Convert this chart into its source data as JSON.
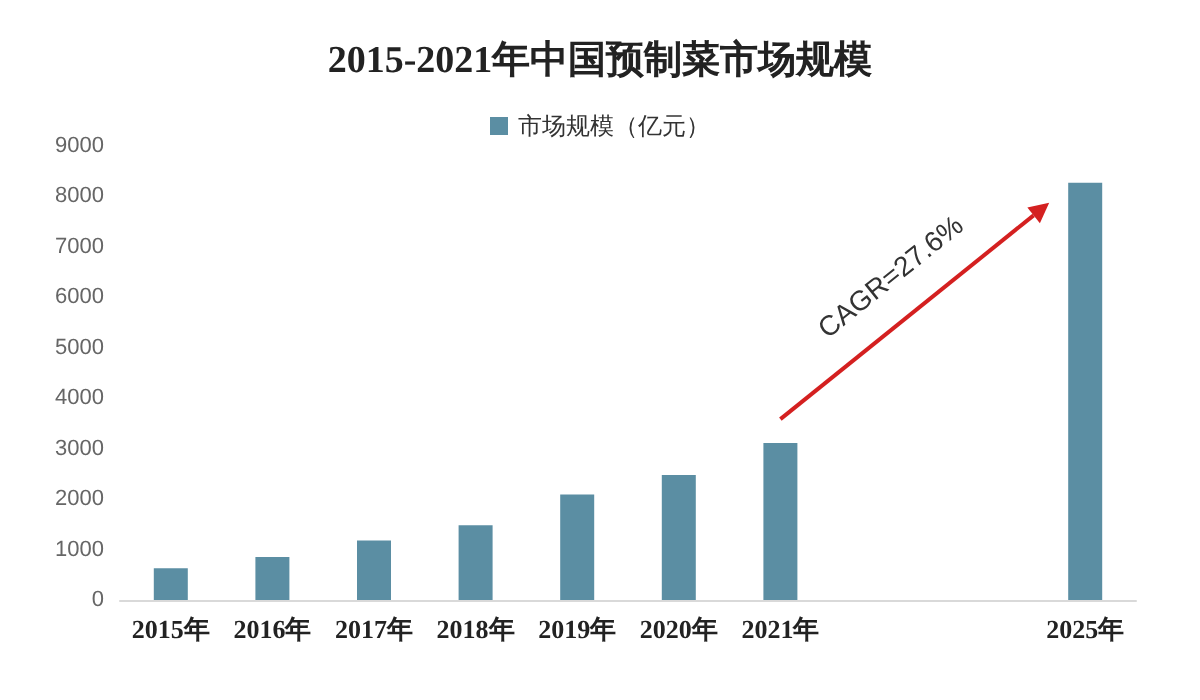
{
  "chart_data": {
    "type": "bar",
    "title": "2015-2021年中国预制菜市场规模",
    "categories": [
      "2015年",
      "2016年",
      "2017年",
      "2018年",
      "2019年",
      "2020年",
      "2021年",
      null,
      null,
      "2025年"
    ],
    "series": [
      {
        "name": "市场规模（亿元）",
        "color": "#5b8ea3",
        "values": [
          630,
          850,
          1180,
          1480,
          2090,
          2480,
          3110,
          null,
          null,
          8270
        ]
      }
    ],
    "ylim": [
      0,
      9000
    ],
    "yticks": [
      0,
      1000,
      2000,
      3000,
      4000,
      5000,
      6000,
      7000,
      8000,
      9000
    ],
    "grid": false,
    "legend": "top",
    "annotations": [
      "CAGR=27.6%"
    ]
  }
}
